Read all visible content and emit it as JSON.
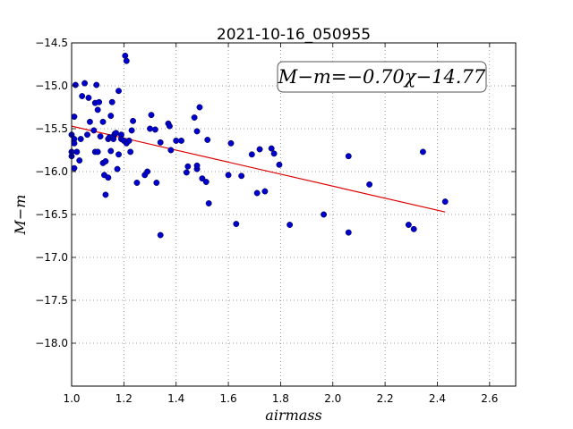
{
  "chart_data": {
    "type": "scatter",
    "title": "2021-10-16_050955",
    "xlabel": "airmass",
    "ylabel": "M−m",
    "xlim": [
      1.0,
      2.7
    ],
    "ylim": [
      -18.5,
      -14.5
    ],
    "y_inverted": true,
    "grid": true,
    "x_ticks": [
      "1.0",
      "1.2",
      "1.4",
      "1.6",
      "1.8",
      "2.0",
      "2.2",
      "2.4",
      "2.6"
    ],
    "y_ticks": [
      "−14.5",
      "−15.0",
      "−15.5",
      "−16.0",
      "−16.5",
      "−17.0",
      "−17.5",
      "−18.0"
    ],
    "annotation": "M−m=−0.70χ−14.77",
    "fit": {
      "slope": -0.7,
      "intercept": -14.77,
      "x_range": [
        1.0,
        2.43
      ],
      "color": "#dd0000"
    },
    "marker_color": "#0000cc",
    "points": [
      [
        1.0,
        -15.77
      ],
      [
        1.0,
        -15.57
      ],
      [
        1.0,
        -15.82
      ],
      [
        1.01,
        -15.36
      ],
      [
        1.01,
        -15.96
      ],
      [
        1.01,
        -15.62
      ],
      [
        1.01,
        -15.67
      ],
      [
        1.015,
        -14.99
      ],
      [
        1.02,
        -15.77
      ],
      [
        1.03,
        -15.87
      ],
      [
        1.035,
        -15.62
      ],
      [
        1.04,
        -15.12
      ],
      [
        1.05,
        -14.97
      ],
      [
        1.06,
        -15.57
      ],
      [
        1.065,
        -15.14
      ],
      [
        1.07,
        -15.42
      ],
      [
        1.085,
        -15.52
      ],
      [
        1.09,
        -15.77
      ],
      [
        1.09,
        -15.2
      ],
      [
        1.095,
        -14.99
      ],
      [
        1.1,
        -15.77
      ],
      [
        1.1,
        -15.28
      ],
      [
        1.105,
        -15.19
      ],
      [
        1.11,
        -15.59
      ],
      [
        1.12,
        -15.9
      ],
      [
        1.12,
        -15.42
      ],
      [
        1.125,
        -16.04
      ],
      [
        1.13,
        -16.27
      ],
      [
        1.13,
        -15.88
      ],
      [
        1.14,
        -16.07
      ],
      [
        1.14,
        -15.62
      ],
      [
        1.145,
        -15.6
      ],
      [
        1.15,
        -15.76
      ],
      [
        1.15,
        -15.35
      ],
      [
        1.155,
        -15.19
      ],
      [
        1.16,
        -15.62
      ],
      [
        1.16,
        -15.59
      ],
      [
        1.165,
        -15.56
      ],
      [
        1.17,
        -15.55
      ],
      [
        1.175,
        -15.97
      ],
      [
        1.18,
        -15.06
      ],
      [
        1.18,
        -15.8
      ],
      [
        1.19,
        -15.57
      ],
      [
        1.19,
        -15.62
      ],
      [
        1.2,
        -15.64
      ],
      [
        1.205,
        -14.65
      ],
      [
        1.21,
        -14.71
      ],
      [
        1.21,
        -15.67
      ],
      [
        1.22,
        -15.64
      ],
      [
        1.225,
        -15.77
      ],
      [
        1.23,
        -15.52
      ],
      [
        1.235,
        -15.41
      ],
      [
        1.25,
        -16.13
      ],
      [
        1.28,
        -16.04
      ],
      [
        1.29,
        -16.0
      ],
      [
        1.3,
        -15.5
      ],
      [
        1.305,
        -15.34
      ],
      [
        1.32,
        -15.51
      ],
      [
        1.325,
        -16.13
      ],
      [
        1.34,
        -15.66
      ],
      [
        1.34,
        -16.74
      ],
      [
        1.37,
        -15.44
      ],
      [
        1.375,
        -15.47
      ],
      [
        1.38,
        -15.75
      ],
      [
        1.4,
        -15.64
      ],
      [
        1.42,
        -15.64
      ],
      [
        1.44,
        -16.01
      ],
      [
        1.445,
        -15.94
      ],
      [
        1.47,
        -15.37
      ],
      [
        1.48,
        -15.97
      ],
      [
        1.48,
        -15.93
      ],
      [
        1.48,
        -15.53
      ],
      [
        1.49,
        -15.25
      ],
      [
        1.5,
        -16.08
      ],
      [
        1.515,
        -16.12
      ],
      [
        1.52,
        -15.63
      ],
      [
        1.525,
        -16.37
      ],
      [
        1.6,
        -16.04
      ],
      [
        1.61,
        -15.67
      ],
      [
        1.63,
        -16.61
      ],
      [
        1.65,
        -16.05
      ],
      [
        1.69,
        -15.8
      ],
      [
        1.71,
        -16.25
      ],
      [
        1.72,
        -15.74
      ],
      [
        1.74,
        -16.23
      ],
      [
        1.765,
        -15.73
      ],
      [
        1.775,
        -15.79
      ],
      [
        1.795,
        -15.92
      ],
      [
        1.835,
        -16.62
      ],
      [
        1.965,
        -16.5
      ],
      [
        2.06,
        -15.82
      ],
      [
        2.06,
        -16.71
      ],
      [
        2.14,
        -16.15
      ],
      [
        2.29,
        -16.62
      ],
      [
        2.31,
        -16.67
      ],
      [
        2.345,
        -15.77
      ],
      [
        2.43,
        -16.35
      ]
    ]
  }
}
